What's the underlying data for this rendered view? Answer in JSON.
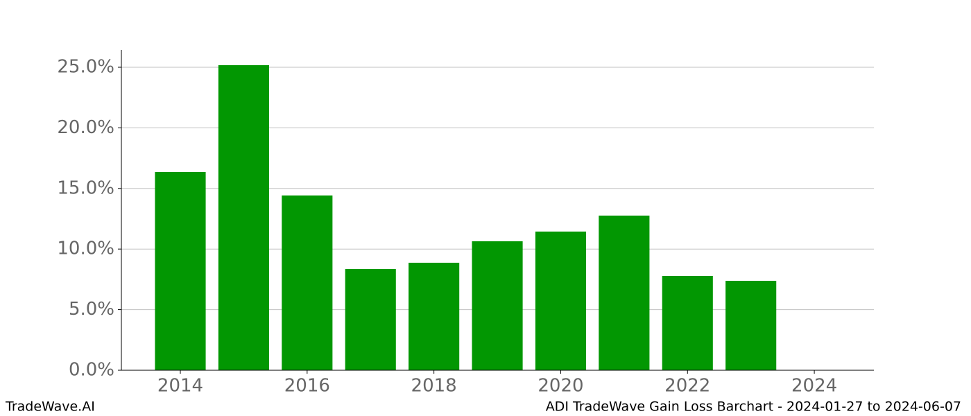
{
  "chart_data": {
    "type": "bar",
    "title": "ADI TradeWave Gain Loss Barchart - 2024-01-27 to 2024-06-07",
    "watermark": "TradeWave.AI",
    "x": [
      2014,
      2015,
      2016,
      2017,
      2018,
      2019,
      2020,
      2021,
      2022,
      2023
    ],
    "values": [
      16.36,
      25.17,
      14.42,
      8.35,
      8.87,
      10.64,
      11.44,
      12.76,
      7.78,
      7.38
    ],
    "color": "#029702",
    "bar_width": 0.8,
    "xlim": [
      2013.07,
      2024.94
    ],
    "xticks": [
      2014,
      2016,
      2018,
      2020,
      2022,
      2024
    ],
    "ylim": [
      0,
      26.43
    ],
    "yticks": [
      {
        "value": 0,
        "label": "0.0%"
      },
      {
        "value": 5,
        "label": "5.0%"
      },
      {
        "value": 10,
        "label": "10.0%"
      },
      {
        "value": 15,
        "label": "15.0%"
      },
      {
        "value": 20,
        "label": "20.0%"
      },
      {
        "value": 25,
        "label": "25.0%"
      }
    ],
    "grid": true
  }
}
